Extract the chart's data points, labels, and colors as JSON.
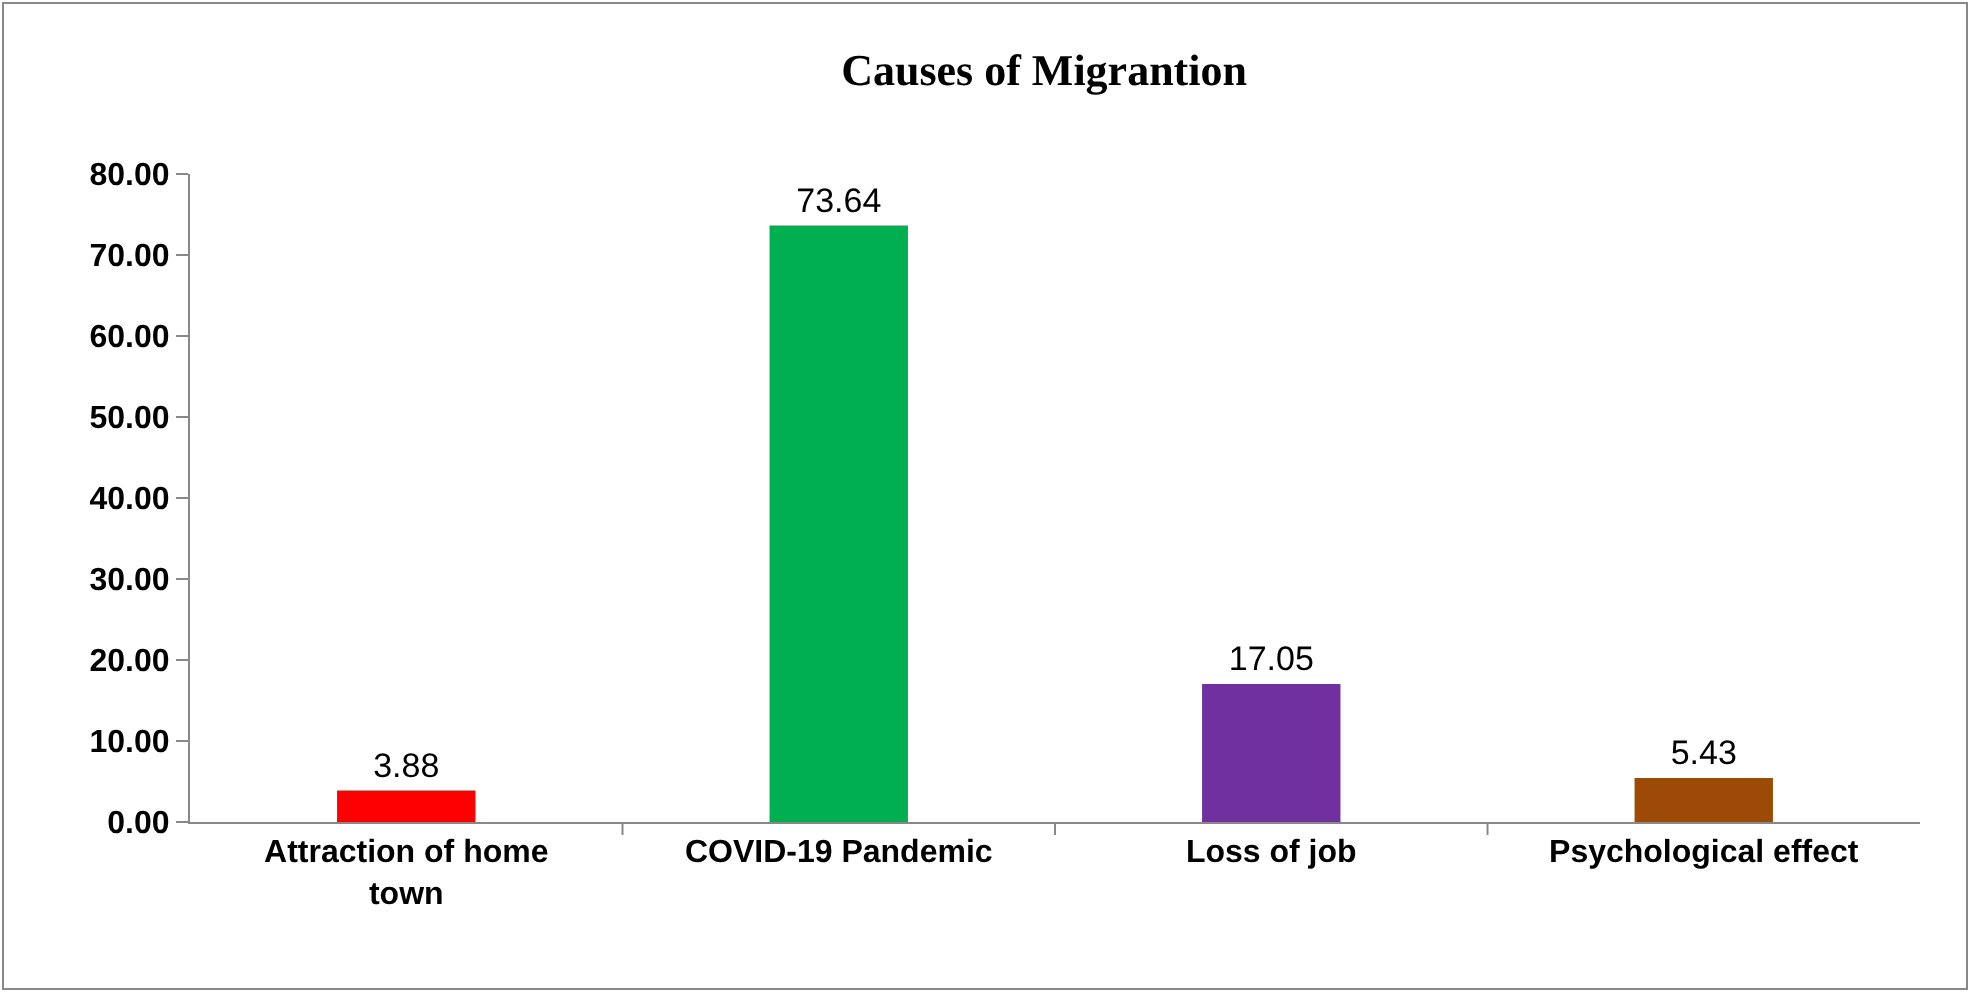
{
  "chart_data": {
    "type": "bar",
    "title": "Causes of Migrantion",
    "categories": [
      "Attraction of home town",
      "COVID-19 Pandemic",
      "Loss of job",
      "Psychological effect"
    ],
    "values": [
      3.88,
      73.64,
      17.05,
      5.43
    ],
    "colors": [
      "#ff0000",
      "#00b050",
      "#7030a0",
      "#9c4a06"
    ],
    "ylim": [
      0,
      80
    ],
    "yticks": [
      {
        "value": 0,
        "label": "0.00"
      },
      {
        "value": 10,
        "label": "10.00"
      },
      {
        "value": 20,
        "label": "20.00"
      },
      {
        "value": 30,
        "label": "30.00"
      },
      {
        "value": 40,
        "label": "40.00"
      },
      {
        "value": 50,
        "label": "50.00"
      },
      {
        "value": 60,
        "label": "60.00"
      },
      {
        "value": 70,
        "label": "70.00"
      },
      {
        "value": 80,
        "label": "80.00"
      }
    ],
    "data_labels": true,
    "grid": false
  }
}
